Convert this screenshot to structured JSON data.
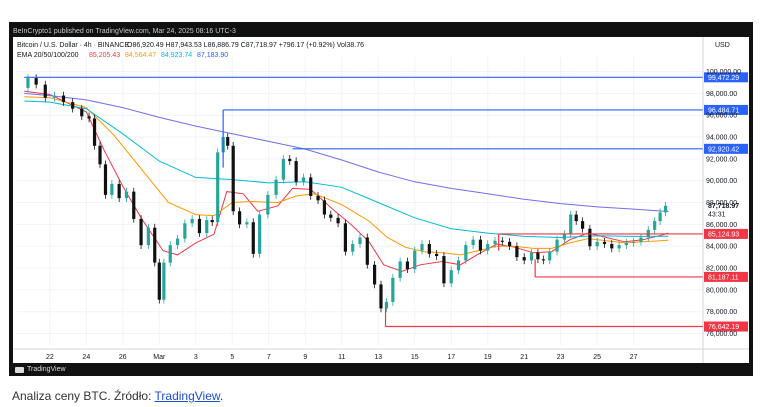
{
  "topline": "BeInCrypto1 published on TradingView.com, Mar 24, 2025 08:16 UTC-3",
  "legend": {
    "symbol": "Bitcoin / U.S. Dollar · 4h · BINANCE",
    "ohlc": "O86,920.49  H87,943.53  L86,886.79  C87,718.97  +796.17 (+0.92%)  Vol38.76",
    "ema_label": "EMA 20/50/100/200",
    "ema_values": [
      "85,205.43",
      "84,564.47",
      "84,923.74",
      "87,183.90"
    ]
  },
  "currency": "USD",
  "tv_logo": "TradingView",
  "caption": {
    "prefix": "Analiza ceny BTC. Źródło: ",
    "link": "TradingView",
    "suffix": "."
  },
  "colors": {
    "up": "#26a69a",
    "down": "#111111",
    "resistance": "#2962ff",
    "support": "#f23645",
    "ema20": "#f23645",
    "ema50": "#ff9800",
    "ema100": "#00bcd4",
    "ema200": "#6f6ff0",
    "last_price": "#2962ff"
  },
  "chart_data": {
    "type": "candlestick",
    "y_axis": {
      "ylim": [
        75500,
        100600
      ],
      "ticks": [
        "76,000.00",
        "78,000.00",
        "80,000.00",
        "82,000.00",
        "84,000.00",
        "86,000.00",
        "88,000.00",
        "90,000.00",
        "92,000.00",
        "94,000.00",
        "96,000.00",
        "98,000.00",
        "100,000.00"
      ]
    },
    "x_axis": {
      "ticks": [
        "22",
        "24",
        "26",
        "Mar",
        "3",
        "5",
        "7",
        "9",
        "11",
        "13",
        "15",
        "17",
        "19",
        "21",
        "23",
        "25",
        "27"
      ]
    },
    "last_price": "87,718.97",
    "countdown": "43:31",
    "price_levels": [
      {
        "label": "99,472.29",
        "value": 99472.29,
        "kind": "resistance"
      },
      {
        "label": "96,484.71",
        "value": 96484.71,
        "kind": "resistance"
      },
      {
        "label": "92,920.42",
        "value": 92920.42,
        "kind": "resistance"
      },
      {
        "label": "85,124.93",
        "value": 85124.93,
        "kind": "support"
      },
      {
        "label": "81,187.11",
        "value": 81187.11,
        "kind": "support"
      },
      {
        "label": "76,642.19",
        "value": 76642.19,
        "kind": "support"
      }
    ],
    "price_path": [
      [
        20.6,
        98500
      ],
      [
        21.0,
        99400
      ],
      [
        21.5,
        98800
      ],
      [
        22.0,
        97600
      ],
      [
        22.5,
        97800
      ],
      [
        23.0,
        97200
      ],
      [
        23.5,
        96600
      ],
      [
        24.0,
        95900
      ],
      [
        24.3,
        95700
      ],
      [
        24.6,
        93200
      ],
      [
        24.9,
        91500
      ],
      [
        25.2,
        88700
      ],
      [
        25.6,
        89700
      ],
      [
        26.0,
        88400
      ],
      [
        26.4,
        89000
      ],
      [
        26.8,
        86500
      ],
      [
        27.2,
        84100
      ],
      [
        27.6,
        85700
      ],
      [
        27.9,
        82500
      ],
      [
        28.1,
        79100
      ],
      [
        28.4,
        82500
      ],
      [
        28.8,
        84100
      ],
      [
        29.2,
        84700
      ],
      [
        29.6,
        86100
      ],
      [
        30.0,
        86500
      ],
      [
        30.4,
        85200
      ],
      [
        30.8,
        86400
      ],
      [
        31.0,
        86200
      ],
      [
        31.4,
        92600
      ],
      [
        31.6,
        94000
      ],
      [
        31.9,
        93200
      ],
      [
        32.2,
        87200
      ],
      [
        32.6,
        86000
      ],
      [
        33.0,
        86200
      ],
      [
        33.3,
        83300
      ],
      [
        33.7,
        86900
      ],
      [
        34.2,
        88700
      ],
      [
        34.6,
        90100
      ],
      [
        35.0,
        92000
      ],
      [
        35.3,
        91800
      ],
      [
        35.7,
        89900
      ],
      [
        36.1,
        90300
      ],
      [
        36.5,
        88600
      ],
      [
        36.9,
        88200
      ],
      [
        37.2,
        86900
      ],
      [
        37.6,
        86600
      ],
      [
        38.0,
        86100
      ],
      [
        38.4,
        83500
      ],
      [
        38.8,
        84200
      ],
      [
        39.2,
        84800
      ],
      [
        39.6,
        82300
      ],
      [
        40.0,
        80500
      ],
      [
        40.3,
        78300
      ],
      [
        40.6,
        78900
      ],
      [
        41.0,
        81100
      ],
      [
        41.4,
        82600
      ],
      [
        41.8,
        81900
      ],
      [
        42.2,
        83600
      ],
      [
        42.6,
        84200
      ],
      [
        43.0,
        83300
      ],
      [
        43.4,
        83100
      ],
      [
        43.8,
        80600
      ],
      [
        44.2,
        81800
      ],
      [
        44.6,
        82700
      ],
      [
        45.0,
        84100
      ],
      [
        45.4,
        84600
      ],
      [
        45.8,
        83600
      ],
      [
        46.2,
        84200
      ],
      [
        46.6,
        84500
      ],
      [
        47.0,
        84400
      ],
      [
        47.4,
        84000
      ],
      [
        47.8,
        83000
      ],
      [
        48.2,
        82700
      ],
      [
        48.6,
        83400
      ],
      [
        48.9,
        82800
      ],
      [
        49.2,
        82700
      ],
      [
        49.6,
        83500
      ],
      [
        50.0,
        84600
      ],
      [
        50.4,
        85100
      ],
      [
        50.7,
        86900
      ],
      [
        51.0,
        86300
      ],
      [
        51.4,
        85600
      ],
      [
        51.8,
        84000
      ],
      [
        52.2,
        84400
      ],
      [
        52.6,
        84200
      ],
      [
        53.0,
        83800
      ],
      [
        53.4,
        84100
      ],
      [
        53.8,
        84300
      ],
      [
        54.2,
        84400
      ],
      [
        54.6,
        84800
      ],
      [
        55.0,
        85500
      ],
      [
        55.3,
        86300
      ],
      [
        55.6,
        87100
      ],
      [
        55.9,
        87700
      ]
    ],
    "ema20": [
      [
        20.6,
        98200
      ],
      [
        22.0,
        97900
      ],
      [
        24.0,
        96300
      ],
      [
        25.0,
        92700
      ],
      [
        26.0,
        89500
      ],
      [
        27.0,
        86600
      ],
      [
        28.2,
        83600
      ],
      [
        29.0,
        83200
      ],
      [
        30.0,
        84300
      ],
      [
        31.0,
        85100
      ],
      [
        31.7,
        89000
      ],
      [
        32.6,
        88800
      ],
      [
        33.4,
        87200
      ],
      [
        34.5,
        87700
      ],
      [
        35.3,
        89300
      ],
      [
        36.3,
        89200
      ],
      [
        37.5,
        87400
      ],
      [
        38.5,
        86000
      ],
      [
        39.5,
        84400
      ],
      [
        40.3,
        82300
      ],
      [
        41.3,
        81700
      ],
      [
        42.3,
        82300
      ],
      [
        43.5,
        82600
      ],
      [
        44.5,
        82300
      ],
      [
        45.5,
        83300
      ],
      [
        46.5,
        84200
      ],
      [
        47.5,
        83900
      ],
      [
        48.5,
        83400
      ],
      [
        49.5,
        83500
      ],
      [
        50.5,
        84600
      ],
      [
        51.5,
        85200
      ],
      [
        52.5,
        84800
      ],
      [
        53.5,
        84400
      ],
      [
        54.5,
        84600
      ],
      [
        55.5,
        85000
      ],
      [
        55.9,
        85200
      ]
    ],
    "ema50": [
      [
        20.6,
        97700
      ],
      [
        22.0,
        97600
      ],
      [
        24.0,
        96700
      ],
      [
        25.5,
        94200
      ],
      [
        27.0,
        91100
      ],
      [
        28.5,
        88000
      ],
      [
        30.0,
        86900
      ],
      [
        31.0,
        86800
      ],
      [
        32.0,
        88000
      ],
      [
        33.0,
        88100
      ],
      [
        34.5,
        88000
      ],
      [
        35.5,
        88600
      ],
      [
        36.5,
        88800
      ],
      [
        38.0,
        87800
      ],
      [
        39.5,
        86300
      ],
      [
        40.5,
        84800
      ],
      [
        41.5,
        83900
      ],
      [
        42.5,
        83500
      ],
      [
        43.5,
        83400
      ],
      [
        44.5,
        83200
      ],
      [
        45.5,
        83600
      ],
      [
        46.5,
        84000
      ],
      [
        47.5,
        84000
      ],
      [
        48.5,
        83800
      ],
      [
        49.5,
        83800
      ],
      [
        50.5,
        84300
      ],
      [
        51.5,
        84700
      ],
      [
        52.5,
        84500
      ],
      [
        53.5,
        84300
      ],
      [
        54.5,
        84400
      ],
      [
        55.5,
        84500
      ],
      [
        55.9,
        84560
      ]
    ],
    "ema100": [
      [
        20.6,
        97300
      ],
      [
        22.0,
        97200
      ],
      [
        24.0,
        96600
      ],
      [
        26.0,
        94300
      ],
      [
        28.0,
        91800
      ],
      [
        30.0,
        90300
      ],
      [
        32.0,
        90100
      ],
      [
        34.0,
        89800
      ],
      [
        36.0,
        89900
      ],
      [
        38.0,
        89400
      ],
      [
        40.0,
        88000
      ],
      [
        42.0,
        86600
      ],
      [
        44.0,
        85600
      ],
      [
        46.0,
        85200
      ],
      [
        48.0,
        84900
      ],
      [
        50.0,
        84800
      ],
      [
        52.0,
        84950
      ],
      [
        54.0,
        84900
      ],
      [
        55.9,
        84920
      ]
    ],
    "ema200": [
      [
        20.6,
        98000
      ],
      [
        22.0,
        97800
      ],
      [
        24.0,
        97400
      ],
      [
        26.0,
        96700
      ],
      [
        28.0,
        95800
      ],
      [
        30.0,
        95000
      ],
      [
        32.0,
        94300
      ],
      [
        34.0,
        93600
      ],
      [
        36.0,
        92900
      ],
      [
        38.0,
        91900
      ],
      [
        40.0,
        90800
      ],
      [
        42.0,
        89900
      ],
      [
        44.0,
        89300
      ],
      [
        46.0,
        88800
      ],
      [
        48.0,
        88300
      ],
      [
        50.0,
        87900
      ],
      [
        52.0,
        87600
      ],
      [
        54.0,
        87400
      ],
      [
        55.9,
        87180
      ]
    ]
  }
}
